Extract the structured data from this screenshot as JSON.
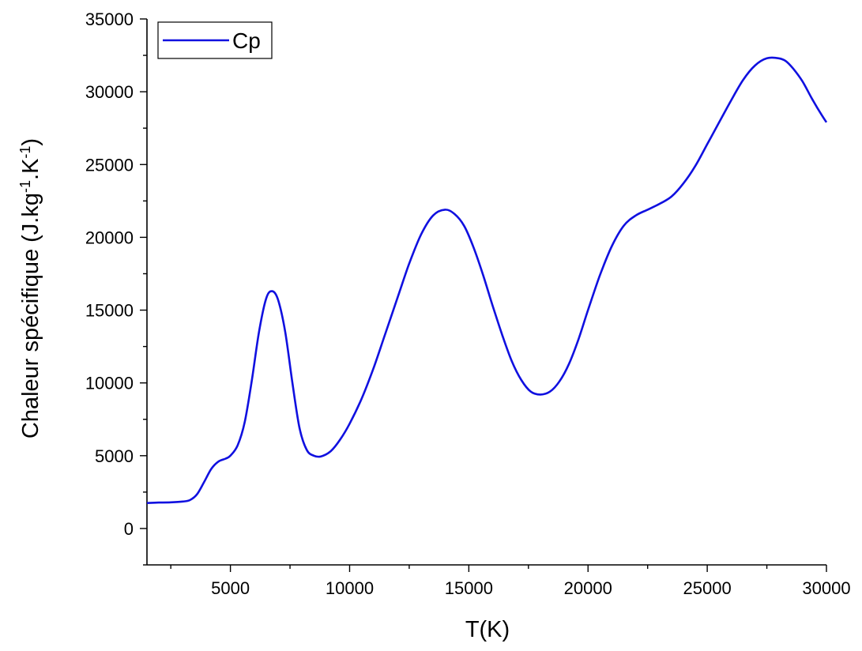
{
  "chart_data": {
    "type": "line",
    "title": "",
    "xlabel": "T(K)",
    "ylabel_parts": {
      "base": "Chaleur spécifique (J.kg",
      "sup1": "-1",
      "mid": ".K",
      "sup2": "-1",
      "end": ")"
    },
    "xlim": [
      1500,
      30000
    ],
    "ylim": [
      -2500,
      35000
    ],
    "x_ticks": [
      5000,
      10000,
      15000,
      20000,
      25000,
      30000
    ],
    "x_tick_labels": [
      "5000",
      "10000",
      "15000",
      "20000",
      "25000",
      "30000"
    ],
    "y_ticks": [
      0,
      5000,
      10000,
      15000,
      20000,
      25000,
      30000,
      35000
    ],
    "y_tick_labels": [
      "0",
      "5000",
      "10000",
      "15000",
      "20000",
      "25000",
      "30000",
      "35000"
    ],
    "grid": false,
    "legend_position": "top-left",
    "colors": {
      "series": "#1010e0"
    },
    "series": [
      {
        "name": "Cp",
        "x": [
          1500,
          2000,
          2500,
          3000,
          3300,
          3600,
          3900,
          4200,
          4500,
          4800,
          5000,
          5300,
          5600,
          5900,
          6200,
          6500,
          6750,
          7000,
          7300,
          7600,
          7900,
          8200,
          8500,
          8800,
          9200,
          9600,
          10000,
          10500,
          11000,
          11500,
          12000,
          12500,
          13000,
          13500,
          14000,
          14400,
          14800,
          15200,
          15600,
          16000,
          16400,
          16800,
          17200,
          17600,
          18000,
          18400,
          18800,
          19200,
          19600,
          20000,
          20500,
          21000,
          21500,
          22000,
          22500,
          23000,
          23500,
          24000,
          24500,
          25000,
          25500,
          26000,
          26500,
          27000,
          27500,
          28000,
          28300,
          28600,
          29000,
          29400,
          29800,
          30000
        ],
        "y": [
          1750,
          1780,
          1800,
          1850,
          1950,
          2350,
          3200,
          4100,
          4600,
          4800,
          5000,
          5700,
          7300,
          10200,
          13500,
          15800,
          16300,
          15700,
          13500,
          10000,
          6900,
          5400,
          5000,
          4950,
          5300,
          6100,
          7200,
          8900,
          11000,
          13400,
          15800,
          18200,
          20200,
          21500,
          21900,
          21600,
          20800,
          19300,
          17400,
          15300,
          13300,
          11500,
          10200,
          9400,
          9200,
          9400,
          10100,
          11300,
          13000,
          15000,
          17400,
          19400,
          20800,
          21500,
          21900,
          22300,
          22800,
          23700,
          24900,
          26400,
          27900,
          29400,
          30800,
          31800,
          32300,
          32300,
          32100,
          31600,
          30700,
          29500,
          28400,
          27900
        ]
      }
    ]
  }
}
